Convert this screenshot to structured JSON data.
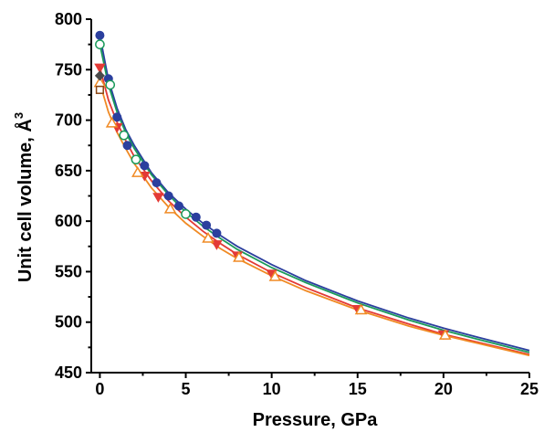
{
  "chart_data": {
    "type": "scatter",
    "xlabel": "Pressure, GPa",
    "ylabel_main": "Unit cell volume, Å",
    "ylabel_sup": "3",
    "xlim": [
      -0.5,
      25
    ],
    "ylim": [
      450,
      800
    ],
    "xticks": [
      0,
      5,
      10,
      15,
      20,
      25
    ],
    "xtick_labels": [
      "0",
      "5",
      "10",
      "15",
      "20",
      "25"
    ],
    "yticks": [
      450,
      500,
      550,
      600,
      650,
      700,
      750,
      800
    ],
    "ytick_labels": [
      "450",
      "500",
      "550",
      "600",
      "650",
      "700",
      "750",
      "800"
    ],
    "grid": false,
    "series": [
      {
        "marker": "filled-circle",
        "color": "#2b3f9e",
        "points": [
          [
            0,
            784
          ],
          [
            0.5,
            741
          ],
          [
            1.0,
            703
          ],
          [
            1.6,
            675
          ],
          [
            2.6,
            655
          ],
          [
            3.3,
            638
          ],
          [
            4.0,
            625
          ],
          [
            4.6,
            615
          ],
          [
            5.6,
            604
          ],
          [
            6.2,
            596
          ],
          [
            6.8,
            588
          ]
        ],
        "curve": [
          [
            0,
            784
          ],
          [
            0.5,
            740
          ],
          [
            1.0,
            712
          ],
          [
            1.5,
            691
          ],
          [
            2.0,
            675
          ],
          [
            3.0,
            648
          ],
          [
            4.0,
            628
          ],
          [
            5.0,
            612
          ],
          [
            6.0,
            598
          ],
          [
            7.0,
            586
          ],
          [
            8.0,
            575
          ],
          [
            10.0,
            557
          ],
          [
            12.0,
            541
          ],
          [
            15.0,
            521
          ],
          [
            18.0,
            504
          ],
          [
            20.0,
            494
          ],
          [
            22.0,
            485
          ],
          [
            25.0,
            472
          ]
        ]
      },
      {
        "marker": "open-circle",
        "color": "#1a9a5a",
        "points": [
          [
            0,
            775
          ],
          [
            0.6,
            735
          ],
          [
            1.4,
            685
          ],
          [
            2.1,
            661
          ],
          [
            5.0,
            607
          ]
        ],
        "curve": [
          [
            0,
            775
          ],
          [
            0.5,
            735
          ],
          [
            1.0,
            708
          ],
          [
            1.5,
            688
          ],
          [
            2.0,
            672
          ],
          [
            3.0,
            646
          ],
          [
            4.0,
            626
          ],
          [
            5.0,
            609
          ],
          [
            6.0,
            595
          ],
          [
            7.0,
            583
          ],
          [
            8.0,
            572
          ],
          [
            10.0,
            554
          ],
          [
            12.0,
            539
          ],
          [
            15.0,
            519
          ],
          [
            18.0,
            502
          ],
          [
            20.0,
            492
          ],
          [
            22.0,
            483
          ],
          [
            25.0,
            470
          ]
        ]
      },
      {
        "marker": "filled-triangle-down",
        "color": "#e33a36",
        "points": [
          [
            0,
            752
          ],
          [
            1.0,
            693
          ],
          [
            2.6,
            645
          ],
          [
            3.4,
            624
          ],
          [
            6.8,
            577
          ],
          [
            8.0,
            566
          ],
          [
            10.0,
            548
          ],
          [
            15.0,
            513
          ],
          [
            20.0,
            488
          ]
        ],
        "curve": [
          [
            0,
            752
          ],
          [
            0.5,
            720
          ],
          [
            1.0,
            698
          ],
          [
            1.5,
            680
          ],
          [
            2.0,
            664
          ],
          [
            3.0,
            640
          ],
          [
            4.0,
            620
          ],
          [
            5.0,
            604
          ],
          [
            6.0,
            590
          ],
          [
            7.0,
            578
          ],
          [
            8.0,
            567
          ],
          [
            10.0,
            549
          ],
          [
            12.0,
            534
          ],
          [
            15.0,
            514
          ],
          [
            18.0,
            498
          ],
          [
            20.0,
            488
          ],
          [
            22.0,
            480
          ],
          [
            25.0,
            468
          ]
        ]
      },
      {
        "marker": "open-triangle-up",
        "color": "#f08a24",
        "points": [
          [
            0,
            737
          ],
          [
            0.7,
            697
          ],
          [
            2.2,
            648
          ],
          [
            4.1,
            612
          ],
          [
            6.3,
            583
          ],
          [
            8.1,
            564
          ],
          [
            10.2,
            545
          ],
          [
            15.2,
            512
          ],
          [
            20.1,
            487
          ]
        ],
        "curve": [
          [
            0,
            737
          ],
          [
            0.5,
            708
          ],
          [
            1.0,
            688
          ],
          [
            1.5,
            672
          ],
          [
            2.0,
            657
          ],
          [
            3.0,
            633
          ],
          [
            4.0,
            614
          ],
          [
            5.0,
            598
          ],
          [
            6.0,
            585
          ],
          [
            7.0,
            573
          ],
          [
            8.0,
            563
          ],
          [
            10.0,
            546
          ],
          [
            12.0,
            531
          ],
          [
            15.0,
            512
          ],
          [
            18.0,
            496
          ],
          [
            20.0,
            487
          ],
          [
            22.0,
            479
          ],
          [
            25.0,
            467
          ]
        ]
      },
      {
        "marker": "open-square",
        "color": "#8b4513",
        "points": [
          [
            0,
            730
          ]
        ]
      },
      {
        "marker": "filled-diamond",
        "color": "#4a4a4a",
        "points": [
          [
            0,
            744
          ]
        ]
      }
    ]
  }
}
